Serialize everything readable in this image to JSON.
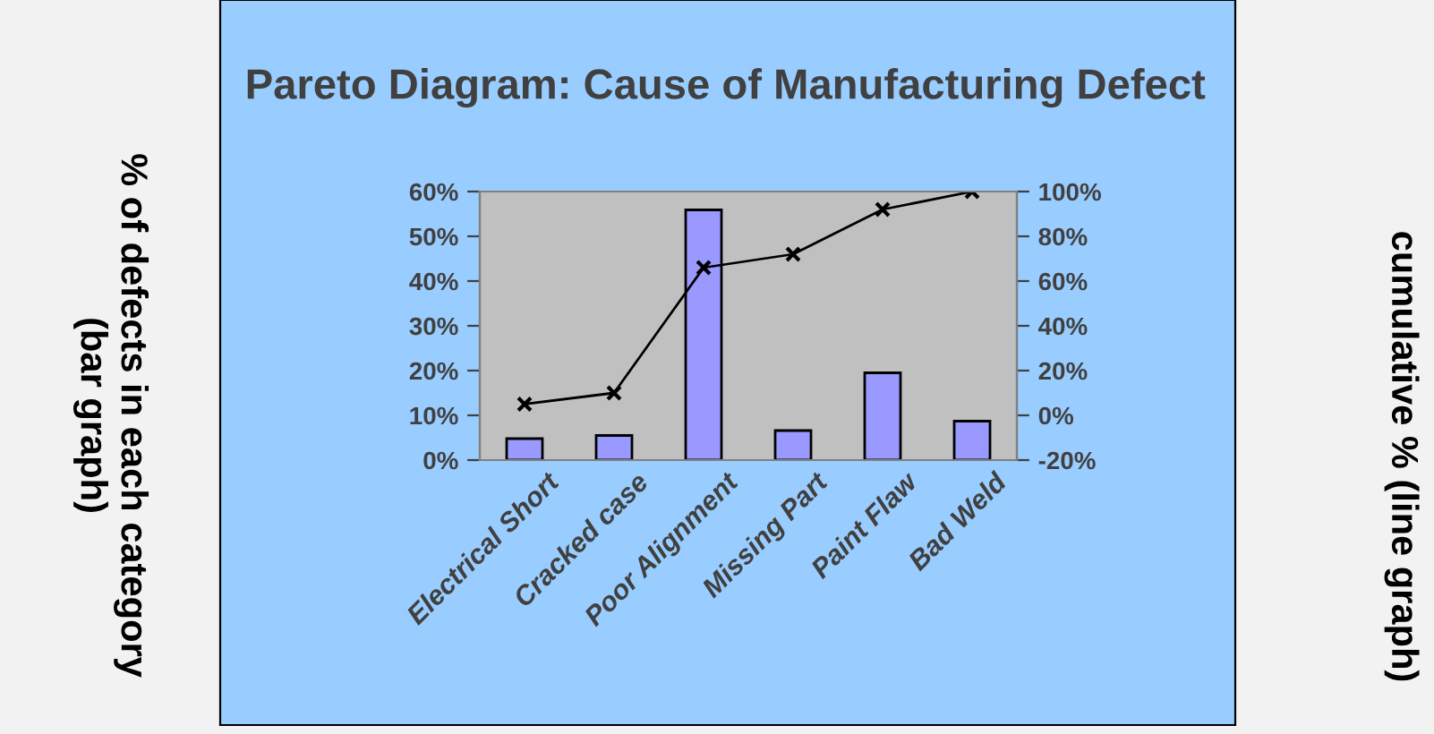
{
  "chart_data": {
    "type": "bar",
    "title": "Pareto Diagram: Cause of Manufacturing Defect",
    "annotations": [
      "% of defects in each category\n(bar graph)",
      "cumulative % (line graph)"
    ],
    "categories": [
      "Electrical Short",
      "Cracked case",
      "Poor Alignment",
      "Missing Part",
      "Paint Flaw",
      "Bad Weld"
    ],
    "series": [
      {
        "type": "bar",
        "color": "#9999ff",
        "values": [
          4.8,
          5.5,
          55.9,
          6.6,
          19.5,
          8.7
        ]
      },
      {
        "type": "line",
        "axis": "y2",
        "color": "#000000",
        "marker": "cross",
        "line_style": "solid",
        "values": [
          5,
          10,
          66,
          72,
          92,
          100
        ]
      }
    ],
    "ylim": [
      0,
      60
    ],
    "yticks": [
      {
        "value": 0,
        "label": "0%"
      },
      {
        "value": 10,
        "label": "10%"
      },
      {
        "value": 20,
        "label": "20%"
      },
      {
        "value": 30,
        "label": "30%"
      },
      {
        "value": 40,
        "label": "40%"
      },
      {
        "value": 50,
        "label": "50%"
      },
      {
        "value": 60,
        "label": "60%"
      }
    ],
    "y2lim": [
      -20,
      100
    ],
    "y2ticks": [
      {
        "value": -20,
        "label": "-20%"
      },
      {
        "value": 0,
        "label": "0%"
      },
      {
        "value": 20,
        "label": "20%"
      },
      {
        "value": 40,
        "label": "40%"
      },
      {
        "value": 60,
        "label": "60%"
      },
      {
        "value": 80,
        "label": "80%"
      },
      {
        "value": 100,
        "label": "100%"
      }
    ],
    "grid": false,
    "legend": false
  }
}
